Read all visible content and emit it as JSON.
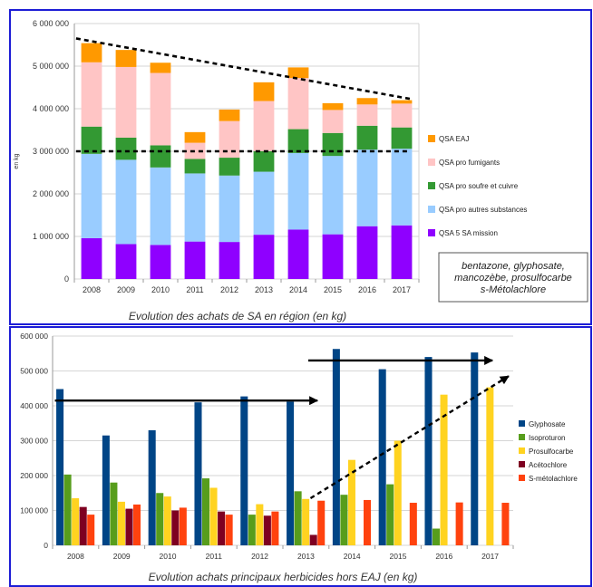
{
  "colors": {
    "frame": "#1d1dd6",
    "grid": "#c8c8c8",
    "axis": "#9a9a9a",
    "trend": "#000000"
  },
  "chart_data": [
    {
      "type": "bar",
      "stacked": true,
      "title": "Evolution des achats de SA en région (en kg)",
      "ylabel": "en kg",
      "ylim": [
        0,
        6000000
      ],
      "yticks": [
        "0",
        "1 000 000",
        "2 000 000",
        "3 000 000",
        "4 000 000",
        "5 000 000",
        "6 000 000"
      ],
      "categories": [
        "2008",
        "2009",
        "2010",
        "2011",
        "2012",
        "2013",
        "2014",
        "2015",
        "2016",
        "2017"
      ],
      "grid": true,
      "legend": "right",
      "series": [
        {
          "name": "QSA 5 SA mission",
          "color": "#8f00ff",
          "values": [
            960000,
            820000,
            800000,
            880000,
            870000,
            1040000,
            1160000,
            1050000,
            1240000,
            1260000
          ]
        },
        {
          "name": "QSA pro autres substances",
          "color": "#99ccff",
          "values": [
            1980000,
            1980000,
            1820000,
            1600000,
            1560000,
            1480000,
            1800000,
            1840000,
            1800000,
            1800000
          ]
        },
        {
          "name": "QSA pro soufre et cuivre",
          "color": "#339933",
          "values": [
            640000,
            520000,
            520000,
            340000,
            420000,
            480000,
            560000,
            540000,
            560000,
            500000
          ]
        },
        {
          "name": "QSA pro fumigants",
          "color": "#ffc5c5",
          "values": [
            1510000,
            1660000,
            1700000,
            380000,
            860000,
            1180000,
            1200000,
            540000,
            500000,
            560000
          ]
        },
        {
          "name": "QSA EAJ",
          "color": "#ff9900",
          "values": [
            450000,
            400000,
            240000,
            250000,
            270000,
            440000,
            250000,
            160000,
            150000,
            80000
          ]
        }
      ],
      "trend_lines": [
        {
          "from": {
            "x": "2008",
            "y": 5650000
          },
          "to": {
            "x": "2017",
            "y": 4230000
          }
        },
        {
          "from": {
            "x": "2008",
            "y": 3000000
          },
          "to": {
            "x": "2017",
            "y": 3000000
          }
        }
      ],
      "note": "bentazone, glyphosate, mancozèbe, prosulfocarbe s-Métolachlore"
    },
    {
      "type": "bar",
      "stacked": false,
      "title": "Evolution achats principaux herbicides hors EAJ (en kg)",
      "ylim": [
        0,
        600000
      ],
      "yticks": [
        "0",
        "100 000",
        "200 000",
        "300 000",
        "400 000",
        "500 000",
        "600 000"
      ],
      "categories": [
        "2008",
        "2009",
        "2010",
        "2011",
        "2012",
        "2013",
        "2014",
        "2015",
        "2016",
        "2017"
      ],
      "grid": true,
      "legend": "right",
      "series": [
        {
          "name": "Glyphosate",
          "color": "#004586",
          "values": [
            448000,
            315000,
            330000,
            410000,
            427000,
            412000,
            563000,
            505000,
            540000,
            553000
          ]
        },
        {
          "name": "Isoproturon",
          "color": "#579d1c",
          "values": [
            203000,
            180000,
            150000,
            192000,
            88000,
            155000,
            145000,
            175000,
            48000,
            0
          ]
        },
        {
          "name": "Prosulfocarbe",
          "color": "#ffd320",
          "values": [
            135000,
            125000,
            140000,
            165000,
            118000,
            133000,
            245000,
            300000,
            432000,
            453000
          ]
        },
        {
          "name": "Acétochlore",
          "color": "#7e0021",
          "values": [
            110000,
            105000,
            100000,
            97000,
            85000,
            30000,
            0,
            0,
            0,
            0
          ]
        },
        {
          "name": "S-métolachlore",
          "color": "#ff420e",
          "values": [
            88000,
            117000,
            108000,
            88000,
            97000,
            128000,
            130000,
            122000,
            123000,
            122000
          ]
        }
      ],
      "arrows": [
        {
          "from": {
            "x": "2008",
            "y": 415000
          },
          "to": {
            "x": "2013",
            "y": 415000
          },
          "dashed": false
        },
        {
          "from": {
            "x": "2013",
            "y": 135000
          },
          "to": {
            "x": "2017",
            "y": 485000
          },
          "dashed": true
        },
        {
          "from": {
            "x": "2013",
            "y": 530000
          },
          "to": {
            "x": "2017",
            "y": 530000
          },
          "dashed": false
        }
      ]
    }
  ]
}
